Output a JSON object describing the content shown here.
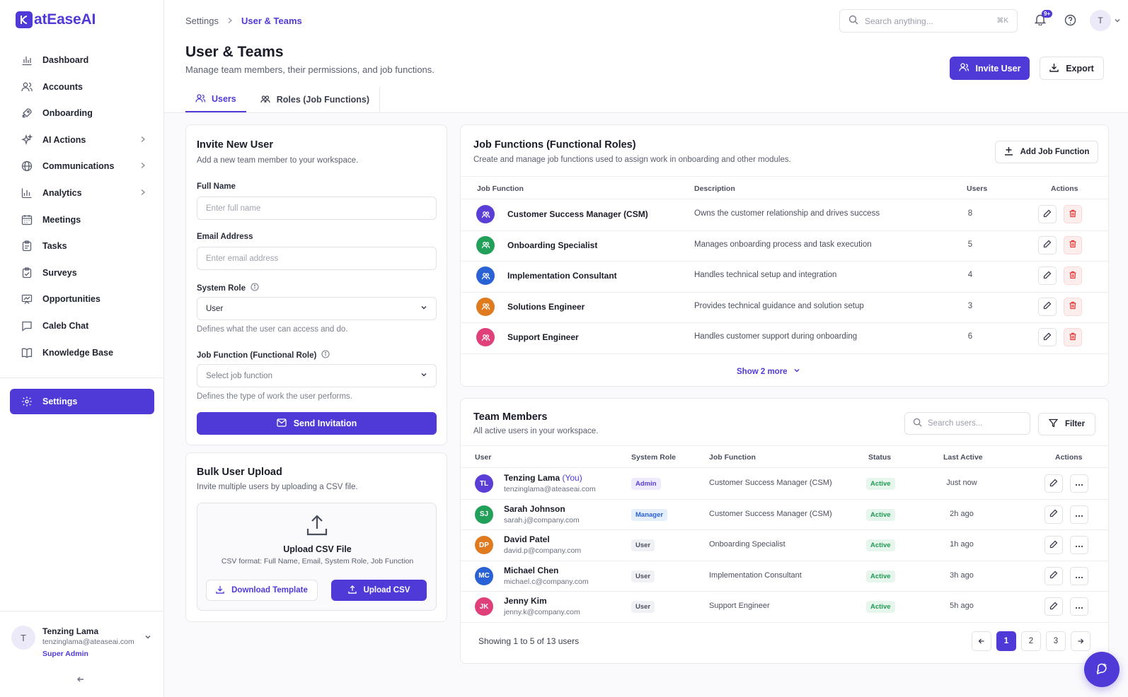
{
  "app": {
    "logo_text": "atEaseAI"
  },
  "colors": {
    "accent": "#4f3ad8",
    "danger": "#e03a3a",
    "success": "#1f9a52"
  },
  "sidebar": {
    "items": [
      {
        "label": "Dashboard",
        "icon": "bar-chart-icon",
        "has_children": false
      },
      {
        "label": "Accounts",
        "icon": "users-icon",
        "has_children": false
      },
      {
        "label": "Onboarding",
        "icon": "rocket-icon",
        "has_children": false
      },
      {
        "label": "AI Actions",
        "icon": "sparkle-icon",
        "has_children": true
      },
      {
        "label": "Communications",
        "icon": "globe-icon",
        "has_children": true
      },
      {
        "label": "Analytics",
        "icon": "analytics-icon",
        "has_children": true
      },
      {
        "label": "Meetings",
        "icon": "calendar-icon",
        "has_children": false
      },
      {
        "label": "Tasks",
        "icon": "clipboard-icon",
        "has_children": false
      },
      {
        "label": "Surveys",
        "icon": "clipboard-check-icon",
        "has_children": false
      },
      {
        "label": "Opportunities",
        "icon": "presentation-icon",
        "has_children": false
      },
      {
        "label": "Caleb Chat",
        "icon": "chat-icon",
        "has_children": false
      },
      {
        "label": "Knowledge Base",
        "icon": "book-icon",
        "has_children": false
      }
    ],
    "settings_label": "Settings",
    "user": {
      "initial": "T",
      "name": "Tenzing Lama",
      "email": "tenzinglama@ateaseai.com",
      "role": "Super Admin"
    }
  },
  "topbar": {
    "breadcrumb": {
      "root": "Settings",
      "current": "User & Teams"
    },
    "search_placeholder": "Search anything...",
    "search_shortcut": "⌘K",
    "notification_count": "9+",
    "avatar_initial": "T"
  },
  "header": {
    "title": "User & Teams",
    "subtitle": "Manage team members, their permissions, and job functions.",
    "invite_button": "Invite User",
    "export_button": "Export"
  },
  "tabs": [
    {
      "label": "Users",
      "active": true
    },
    {
      "label": "Roles (Job Functions)",
      "active": false
    }
  ],
  "invite_form": {
    "title": "Invite New User",
    "subtitle": "Add a new team member to your workspace.",
    "full_name_label": "Full Name",
    "full_name_placeholder": "Enter full name",
    "email_label": "Email Address",
    "email_placeholder": "Enter email address",
    "system_role_label": "System Role",
    "system_role_value": "User",
    "system_role_help": "Defines what the user can access and do.",
    "job_function_label": "Job Function (Functional Role)",
    "job_function_placeholder": "Select job function",
    "job_function_help": "Defines the type of work the user performs.",
    "send_button": "Send Invitation"
  },
  "bulk_upload": {
    "title": "Bulk User Upload",
    "subtitle": "Invite multiple users by uploading a CSV file.",
    "box_title": "Upload CSV File",
    "box_format": "CSV format: Full Name, Email, System Role, Job Function",
    "download_button": "Download Template",
    "upload_button": "Upload CSV"
  },
  "job_functions": {
    "title": "Job Functions (Functional Roles)",
    "subtitle": "Create and manage job functions used to assign work in onboarding and other modules.",
    "add_button": "Add Job Function",
    "columns": {
      "name": "Job Function",
      "description": "Description",
      "users": "Users",
      "actions": "Actions"
    },
    "rows": [
      {
        "name": "Customer Success Manager (CSM)",
        "description": "Owns the customer relationship and drives success",
        "users": "8",
        "color": "#5a3ed6"
      },
      {
        "name": "Onboarding Specialist",
        "description": "Manages onboarding process and task execution",
        "users": "5",
        "color": "#22a05a"
      },
      {
        "name": "Implementation Consultant",
        "description": "Handles technical setup and integration",
        "users": "4",
        "color": "#2a62d6"
      },
      {
        "name": "Solutions Engineer",
        "description": "Provides technical guidance and solution setup",
        "users": "3",
        "color": "#e07a1f"
      },
      {
        "name": "Support Engineer",
        "description": "Handles customer support during onboarding",
        "users": "6",
        "color": "#e0407a"
      }
    ],
    "show_more": "Show 2 more"
  },
  "team_members": {
    "title": "Team Members",
    "subtitle": "All active users in your workspace.",
    "search_placeholder": "Search users...",
    "filter_button": "Filter",
    "columns": {
      "user": "User",
      "system_role": "System Role",
      "job_function": "Job Function",
      "status": "Status",
      "last_active": "Last Active",
      "actions": "Actions"
    },
    "rows": [
      {
        "initials": "TL",
        "name": "Tenzing Lama",
        "you": "(You)",
        "email": "tenzinglama@ateaseai.com",
        "role": "Admin",
        "role_type": "admin",
        "job_function": "Customer Success Manager (CSM)",
        "status": "Active",
        "last_active": "Just now",
        "color": "#5a3ed6"
      },
      {
        "initials": "SJ",
        "name": "Sarah Johnson",
        "you": "",
        "email": "sarah.j@company.com",
        "role": "Manager",
        "role_type": "manager",
        "job_function": "Customer Success Manager (CSM)",
        "status": "Active",
        "last_active": "2h ago",
        "color": "#22a05a"
      },
      {
        "initials": "DP",
        "name": "David Patel",
        "you": "",
        "email": "david.p@company.com",
        "role": "User",
        "role_type": "user",
        "job_function": "Onboarding Specialist",
        "status": "Active",
        "last_active": "1h ago",
        "color": "#e07a1f"
      },
      {
        "initials": "MC",
        "name": "Michael Chen",
        "you": "",
        "email": "michael.c@company.com",
        "role": "User",
        "role_type": "user",
        "job_function": "Implementation Consultant",
        "status": "Active",
        "last_active": "3h ago",
        "color": "#2a62d6"
      },
      {
        "initials": "JK",
        "name": "Jenny Kim",
        "you": "",
        "email": "jenny.k@company.com",
        "role": "User",
        "role_type": "user",
        "job_function": "Support Engineer",
        "status": "Active",
        "last_active": "5h ago",
        "color": "#e0407a"
      }
    ],
    "pagination_text": "Showing 1 to 5 of 13 users",
    "pages": [
      "1",
      "2",
      "3"
    ],
    "current_page": "1"
  }
}
